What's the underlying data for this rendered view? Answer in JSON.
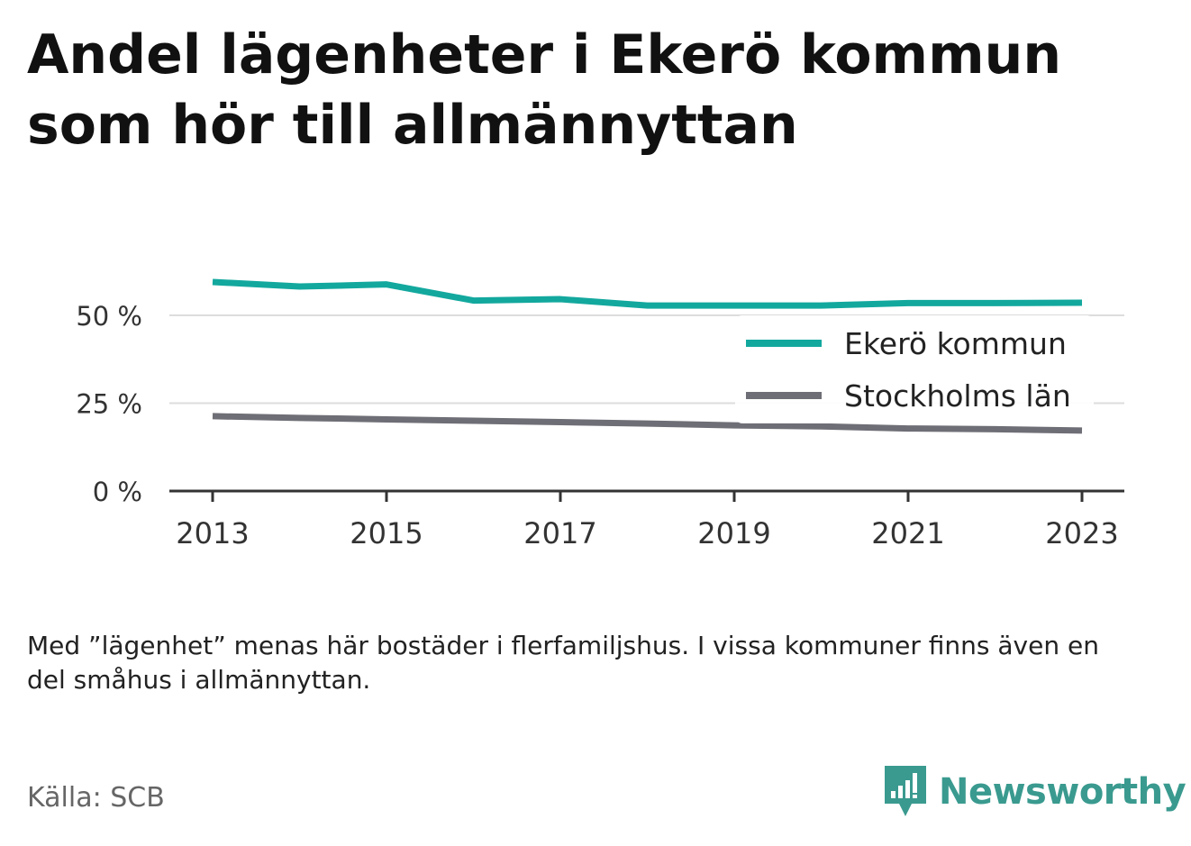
{
  "title": "Andel lägenheter i Ekerö kommun som hör till allmännyttan",
  "note": "Med ”lägenhet” menas här bostäder i flerfamiljshus. I vissa kommuner finns även en del småhus i allmännyttan.",
  "source": "Källa: SCB",
  "brand": {
    "name": "Newsworthy",
    "color": "#3a9a8f"
  },
  "chart_data": {
    "type": "line",
    "x": [
      2013,
      2014,
      2015,
      2016,
      2017,
      2018,
      2019,
      2020,
      2021,
      2022,
      2023
    ],
    "x_ticks": [
      "2013",
      "2015",
      "2017",
      "2019",
      "2021",
      "2023"
    ],
    "y_ticks": [
      "0 %",
      "25 %",
      "50 %"
    ],
    "ylim": [
      0,
      62
    ],
    "grid": true,
    "legend": "right",
    "series": [
      {
        "name": "Ekerö kommun",
        "color": "#13a89e",
        "values": [
          59.5,
          58.2,
          58.8,
          54.2,
          54.6,
          52.8,
          52.8,
          52.8,
          53.5,
          53.5,
          53.6
        ]
      },
      {
        "name": "Stockholms län",
        "color": "#6e6e76",
        "values": [
          21.3,
          20.8,
          20.4,
          20.0,
          19.6,
          19.2,
          18.7,
          18.4,
          17.8,
          17.6,
          17.2
        ]
      }
    ]
  }
}
